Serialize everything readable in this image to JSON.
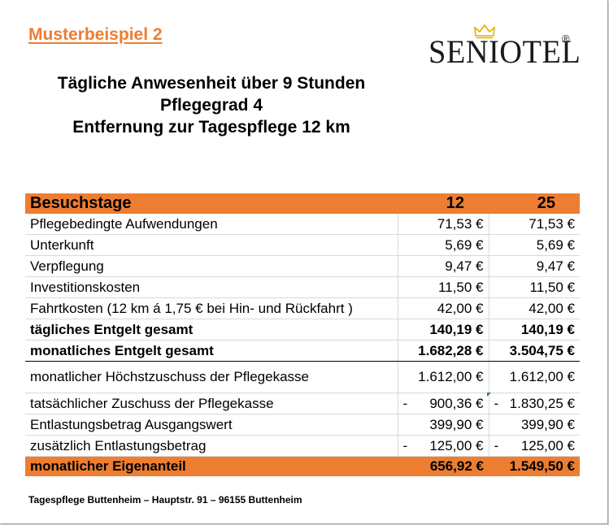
{
  "headline": "Musterbeispiel 2",
  "logo": {
    "brand": "SENIOTEL",
    "reg": "®",
    "crown_icon": "crown-icon"
  },
  "titles": [
    "Tägliche Anwesenheit über 9 Stunden",
    "Pflegegrad 4",
    "Entfernung zur Tagespflege 12 km"
  ],
  "colors": {
    "accent": "#ed7d31"
  },
  "table": {
    "header": {
      "label": "Besuchstage",
      "col1": "12",
      "col2": "25"
    },
    "rows": [
      {
        "label": "Pflegebedingte Aufwendungen",
        "v1": "71,53 €",
        "v2": "71,53 €"
      },
      {
        "label": "Unterkunft",
        "v1": "5,69 €",
        "v2": "5,69 €"
      },
      {
        "label": "Verpflegung",
        "v1": "9,47 €",
        "v2": "9,47 €"
      },
      {
        "label": "Investitionskosten",
        "v1": "11,50 €",
        "v2": "11,50 €"
      },
      {
        "label": "Fahrtkosten (12 km á 1,75 € bei Hin- und Rückfahrt )",
        "v1": "42,00 €",
        "v2": "42,00 €"
      },
      {
        "label": "tägliches Entgelt gesamt",
        "v1": "140,19 €",
        "v2": "140,19 €"
      },
      {
        "label": "monatliches Entgelt gesamt",
        "v1": "1.682,28 €",
        "v2": "3.504,75 €"
      },
      {
        "label": "monatlicher Höchstzuschuss der Pflegekasse",
        "v1": "1.612,00 €",
        "v2": "1.612,00 €"
      },
      {
        "label": "tatsächlicher Zuschuss der Pflegekasse",
        "sign1": "-",
        "v1": "900,36 €",
        "sign2": "-",
        "v2": "1.830,25 €"
      },
      {
        "label": "Entlastungsbetrag Ausgangswert",
        "v1": "399,90 €",
        "v2": "399,90 €"
      },
      {
        "label": "zusätzlich Entlastungsbetrag",
        "sign1": "-",
        "v1": "125,00 €",
        "sign2": "-",
        "v2": "125,00 €"
      }
    ],
    "total": {
      "label": "monatlicher Eigenanteil",
      "v1": "656,92 €",
      "v2": "1.549,50 €"
    }
  },
  "footer": "Tagespflege Buttenheim – Hauptstr. 91 – 96155 Buttenheim"
}
